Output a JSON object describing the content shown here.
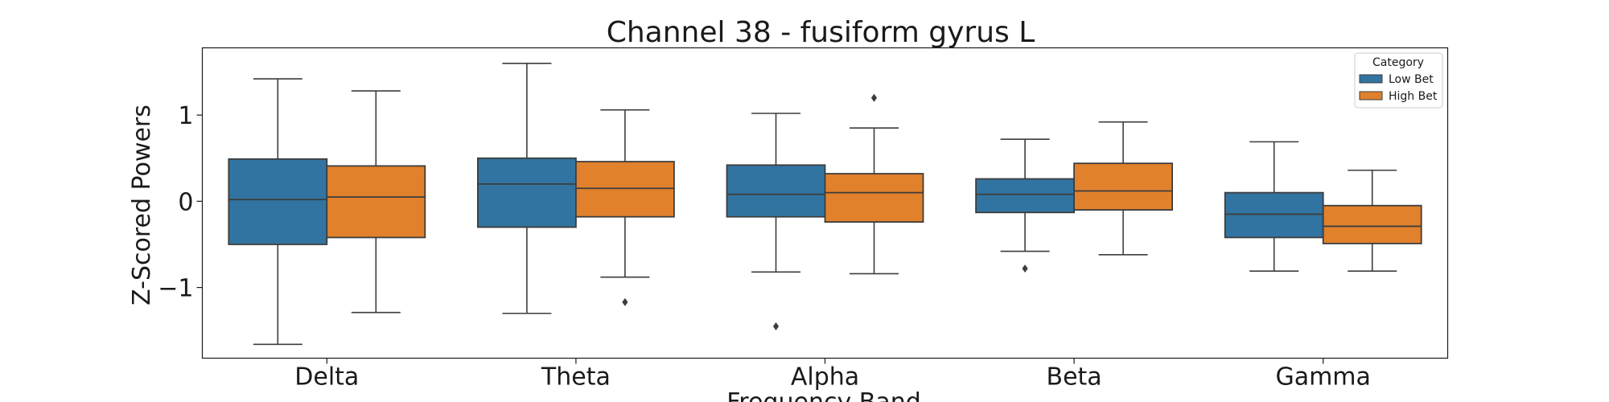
{
  "chart_data": {
    "type": "boxplot",
    "title": "Channel 38 - fusiform gyrus L",
    "xlabel": "Frequency Band",
    "ylabel": "Z-Scored Powers",
    "categories": [
      "Delta",
      "Theta",
      "Alpha",
      "Beta",
      "Gamma"
    ],
    "ylim": [
      -1.82,
      1.78
    ],
    "yticks": [
      {
        "value": -1,
        "label": "−1"
      },
      {
        "value": 0,
        "label": "0"
      },
      {
        "value": 1,
        "label": "1"
      }
    ],
    "grid": false,
    "legend": {
      "title": "Category",
      "placement": "top-right"
    },
    "series": [
      {
        "name": "Low Bet",
        "color": "#3274a1",
        "boxes": [
          {
            "whisker_low": -1.66,
            "q1": -0.5,
            "median": 0.02,
            "q3": 0.49,
            "whisker_high": 1.42,
            "outliers": []
          },
          {
            "whisker_low": -1.3,
            "q1": -0.3,
            "median": 0.2,
            "q3": 0.5,
            "whisker_high": 1.6,
            "outliers": []
          },
          {
            "whisker_low": -0.82,
            "q1": -0.18,
            "median": 0.08,
            "q3": 0.42,
            "whisker_high": 1.02,
            "outliers": [
              -1.45
            ]
          },
          {
            "whisker_low": -0.58,
            "q1": -0.13,
            "median": 0.08,
            "q3": 0.26,
            "whisker_high": 0.72,
            "outliers": [
              -0.78
            ]
          },
          {
            "whisker_low": -0.81,
            "q1": -0.42,
            "median": -0.15,
            "q3": 0.1,
            "whisker_high": 0.69,
            "outliers": []
          }
        ]
      },
      {
        "name": "High Bet",
        "color": "#e1812c",
        "boxes": [
          {
            "whisker_low": -1.29,
            "q1": -0.42,
            "median": 0.05,
            "q3": 0.41,
            "whisker_high": 1.28,
            "outliers": []
          },
          {
            "whisker_low": -0.88,
            "q1": -0.18,
            "median": 0.15,
            "q3": 0.46,
            "whisker_high": 1.06,
            "outliers": [
              -1.17
            ]
          },
          {
            "whisker_low": -0.84,
            "q1": -0.24,
            "median": 0.1,
            "q3": 0.32,
            "whisker_high": 0.85,
            "outliers": [
              1.2
            ]
          },
          {
            "whisker_low": -0.62,
            "q1": -0.1,
            "median": 0.12,
            "q3": 0.44,
            "whisker_high": 0.92,
            "outliers": []
          },
          {
            "whisker_low": -0.81,
            "q1": -0.49,
            "median": -0.29,
            "q3": -0.05,
            "whisker_high": 0.36,
            "outliers": []
          }
        ]
      }
    ]
  }
}
